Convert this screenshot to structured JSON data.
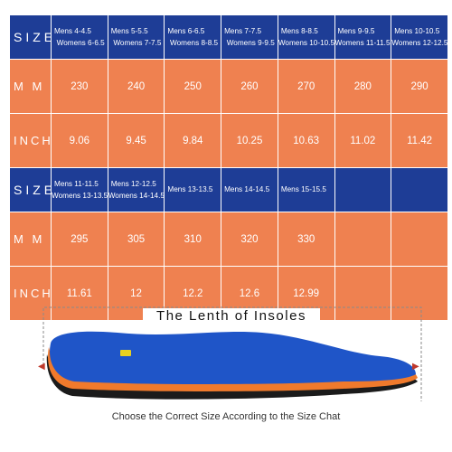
{
  "table": {
    "labels": {
      "size": "SIZE",
      "mm": "M M",
      "inch": "INCH"
    },
    "block1": {
      "sizes": [
        {
          "mens": "Mens 4-4.5",
          "womens": "Womens 6-6.5"
        },
        {
          "mens": "Mens 5-5.5",
          "womens": "Womens 7-7.5"
        },
        {
          "mens": "Mens 6-6.5",
          "womens": "Womens 8-8.5"
        },
        {
          "mens": "Mens 7-7.5",
          "womens": "Womens 9-9.5"
        },
        {
          "mens": "Mens 8-8.5",
          "womens": "Womens 10-10.5"
        },
        {
          "mens": "Mens 9-9.5",
          "womens": "Womens 11-11.5"
        },
        {
          "mens": "Mens 10-10.5",
          "womens": "Womens 12-12.5"
        }
      ],
      "mm": [
        "230",
        "240",
        "250",
        "260",
        "270",
        "280",
        "290"
      ],
      "inch": [
        "9.06",
        "9.45",
        "9.84",
        "10.25",
        "10.63",
        "11.02",
        "11.42"
      ]
    },
    "block2": {
      "sizes": [
        {
          "mens": "Mens 11-11.5",
          "womens": "Womens 13-13.5"
        },
        {
          "mens": "Mens 12-12.5",
          "womens": "Womens 14-14.5"
        },
        {
          "mens": "Mens 13-13.5",
          "womens": ""
        },
        {
          "mens": "Mens 14-14.5",
          "womens": ""
        },
        {
          "mens": "Mens 15-15.5",
          "womens": ""
        },
        {
          "mens": "",
          "womens": ""
        },
        {
          "mens": "",
          "womens": ""
        }
      ],
      "mm": [
        "295",
        "305",
        "310",
        "320",
        "330",
        "",
        ""
      ],
      "inch": [
        "11.61",
        "12",
        "12.2",
        "12.6",
        "12.99",
        "",
        ""
      ]
    }
  },
  "insole": {
    "title": "The Lenth of Insoles"
  },
  "caption": "Choose the Correct Size According to the Size Chat",
  "colors": {
    "blue": "#1e3d96",
    "orange": "#ef8150",
    "insole_blue": "#1f55c8",
    "insole_orange": "#f07a2c"
  }
}
